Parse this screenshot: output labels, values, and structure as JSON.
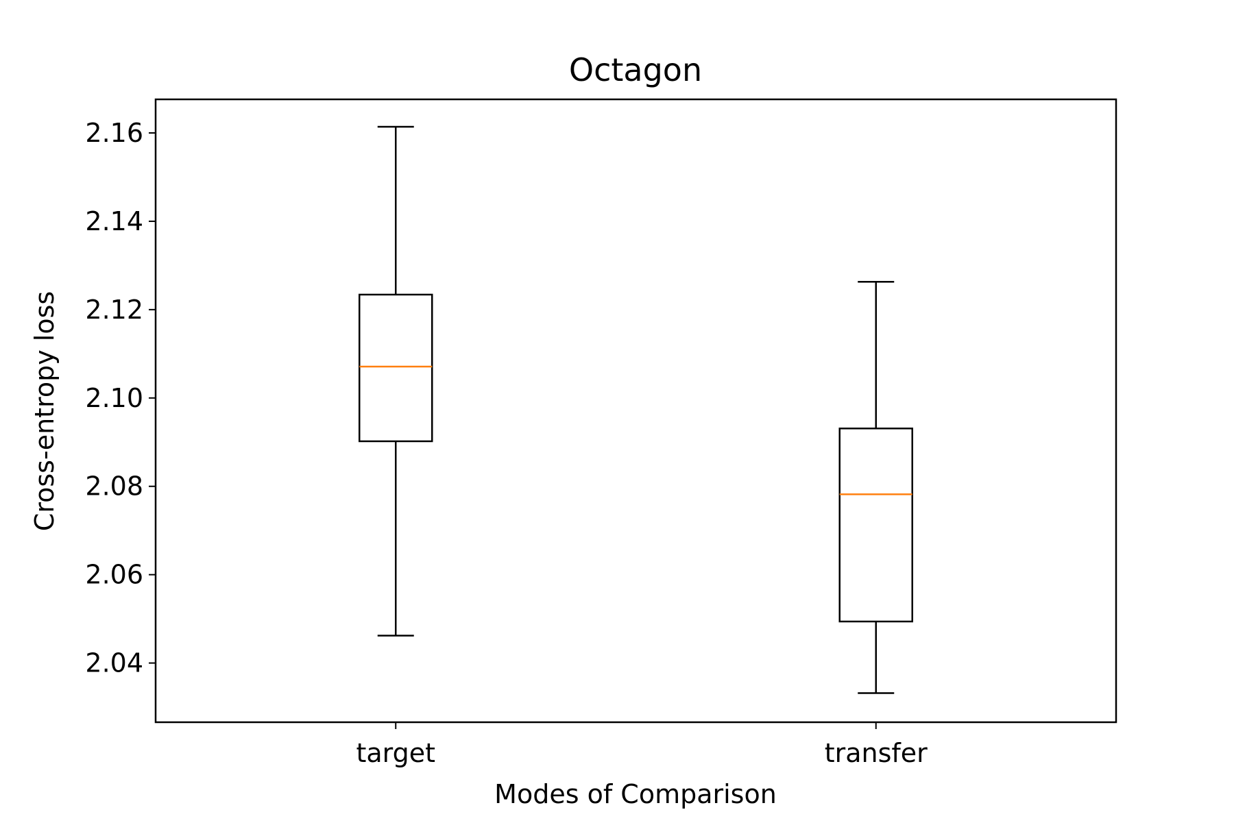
{
  "chart_data": {
    "type": "box",
    "title": "Octagon",
    "xlabel": "Modes of Comparison",
    "ylabel": "Cross-entropy loss",
    "ylim": [
      2.0266,
      2.1676
    ],
    "yticks": [
      2.04,
      2.06,
      2.08,
      2.1,
      2.12,
      2.14,
      2.16
    ],
    "ytick_labels": [
      "2.04",
      "2.06",
      "2.08",
      "2.10",
      "2.12",
      "2.14",
      "2.16"
    ],
    "categories": [
      "target",
      "transfer"
    ],
    "boxes": [
      {
        "category": "target",
        "whisker_low": 2.0462,
        "q1": 2.0902,
        "median": 2.1071,
        "q3": 2.1234,
        "whisker_high": 2.1614
      },
      {
        "category": "transfer",
        "whisker_low": 2.0332,
        "q1": 2.0494,
        "median": 2.0782,
        "q3": 2.0931,
        "whisker_high": 2.1263
      }
    ],
    "grid": false,
    "colors": {
      "box": "#000000",
      "median": "#ff7f0e"
    }
  }
}
